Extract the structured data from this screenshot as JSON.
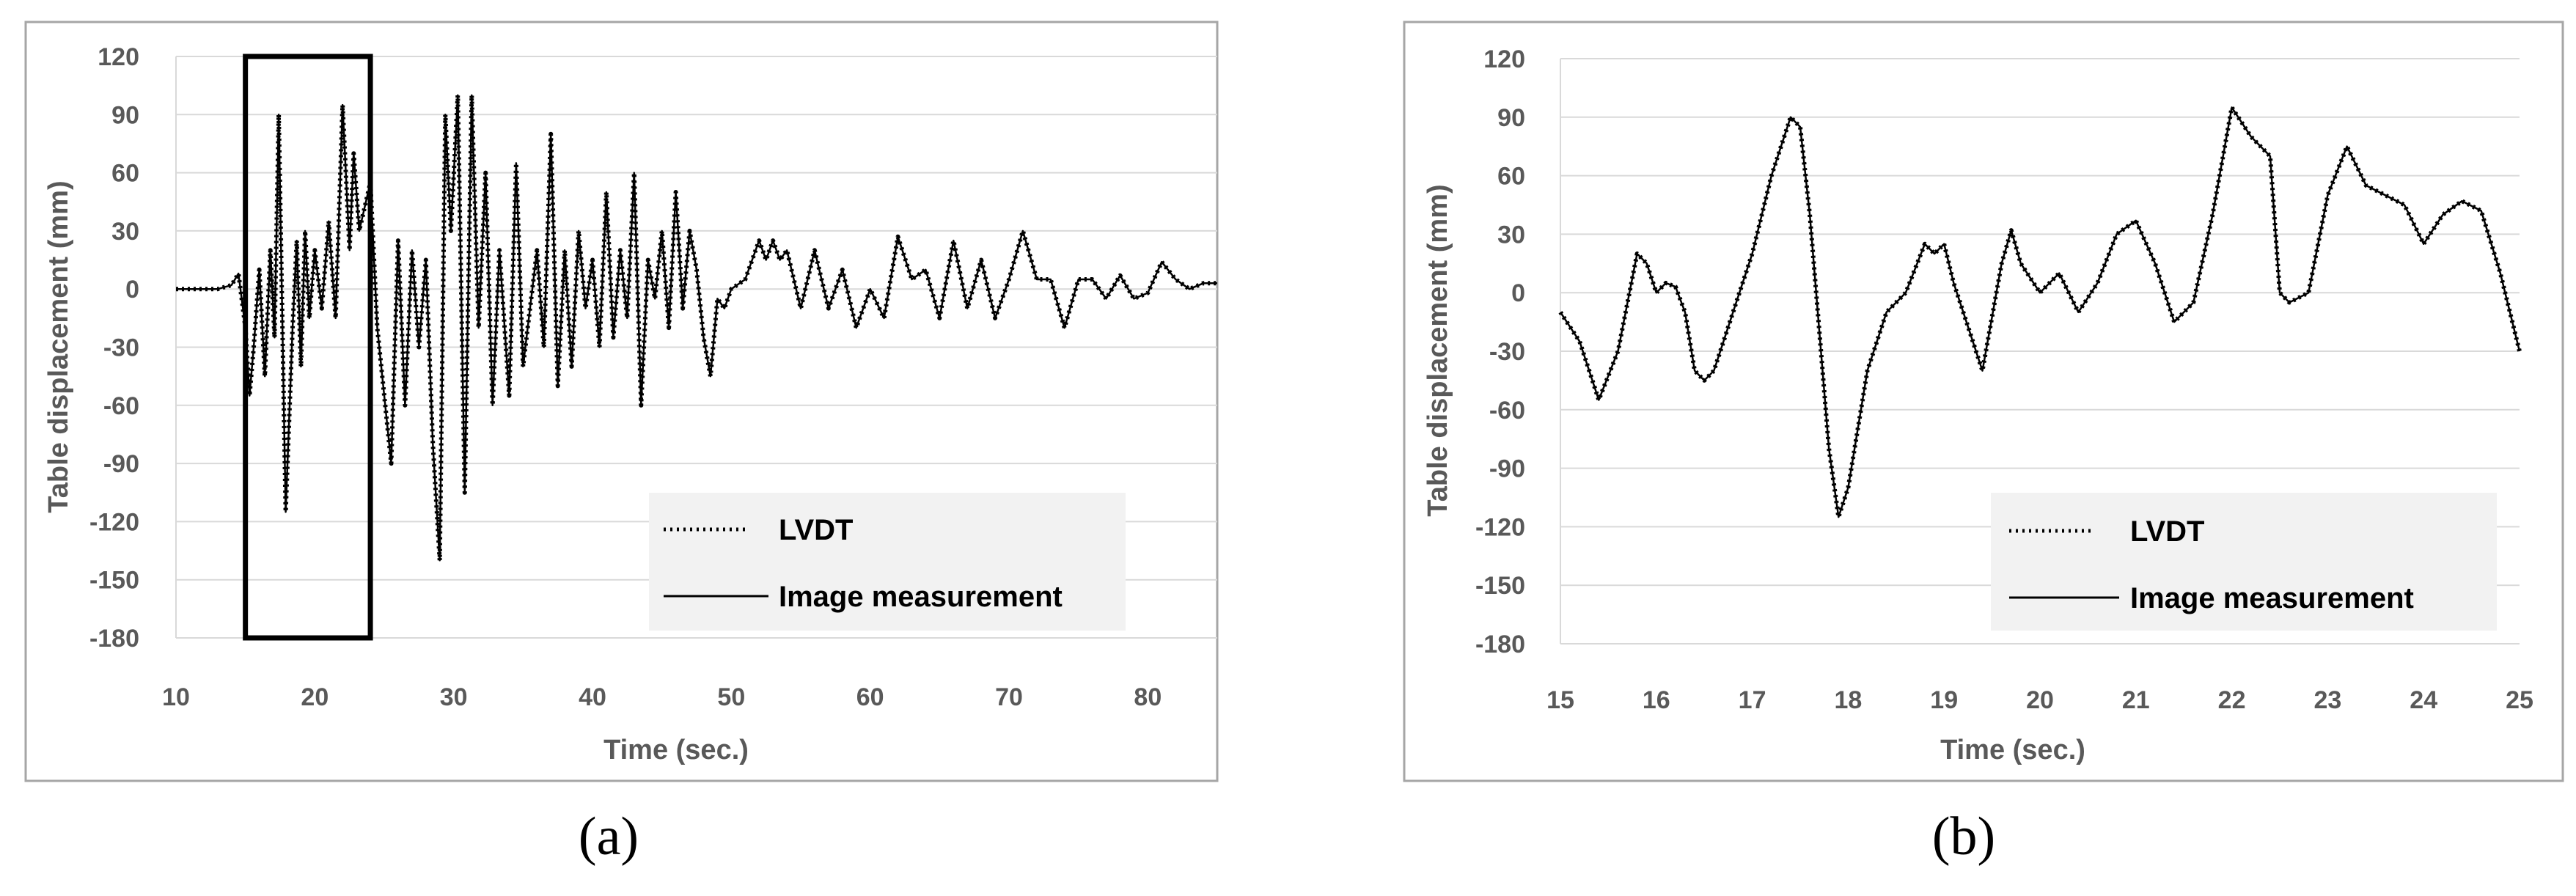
{
  "colors": {
    "frame": "#a6a6a6",
    "grid": "#d9d9d9",
    "text": "#595959",
    "series": "#000000",
    "legend_bg": "#f2f2f2"
  },
  "chart_data": [
    {
      "panel_label": "(a)",
      "type": "line",
      "xlabel": "Time (sec.)",
      "ylabel": "Table displacement (mm)",
      "xlim": [
        10,
        85
      ],
      "ylim": [
        -180,
        120
      ],
      "xticks": [
        10,
        20,
        30,
        40,
        50,
        60,
        70,
        80
      ],
      "yticks": [
        120,
        90,
        60,
        30,
        0,
        -30,
        -60,
        -90,
        -120,
        -150,
        -180
      ],
      "grid": "horizontal",
      "legend_position": "bottom-right",
      "highlight_box": {
        "x_range": [
          15,
          24
        ],
        "y_range": [
          -180,
          120
        ]
      },
      "series": [
        {
          "name": "LVDT",
          "style": "dotted",
          "x": [
            10,
            13,
            14,
            14.5,
            15,
            15.3,
            15.6,
            16,
            16.4,
            16.8,
            17.1,
            17.4,
            17.9,
            18.4,
            18.7,
            19,
            19.3,
            19.6,
            20,
            20.5,
            21,
            21.5,
            22,
            22.5,
            22.8,
            23.2,
            24,
            24.5,
            25,
            25.5,
            26,
            26.5,
            27,
            27.5,
            28,
            28.5,
            29,
            29.4,
            29.8,
            30.3,
            30.8,
            31.3,
            31.8,
            32.3,
            32.8,
            33.3,
            34,
            34.5,
            35,
            35.5,
            36,
            36.5,
            37,
            37.5,
            38,
            38.5,
            39,
            39.5,
            40,
            40.5,
            41,
            41.5,
            42,
            42.5,
            43,
            43.5,
            44,
            44.5,
            45,
            45.5,
            46,
            46.5,
            47,
            47.5,
            48,
            48.5,
            49,
            49.5,
            50,
            51,
            52,
            52.5,
            53,
            53.5,
            54,
            55,
            56,
            57,
            58,
            59,
            60,
            61,
            62,
            63,
            64,
            65,
            66,
            67,
            68,
            69,
            70,
            71,
            72,
            73,
            74,
            75,
            76,
            77,
            78,
            79,
            80,
            81,
            82,
            83,
            84,
            85
          ],
          "y": [
            0,
            0,
            2,
            8,
            -20,
            -55,
            -30,
            10,
            -45,
            20,
            -25,
            90,
            -115,
            -20,
            25,
            -40,
            30,
            -15,
            20,
            -10,
            35,
            -15,
            95,
            20,
            70,
            30,
            55,
            -20,
            -55,
            -90,
            25,
            -60,
            20,
            -30,
            15,
            -80,
            -140,
            90,
            30,
            100,
            -105,
            100,
            -20,
            60,
            -60,
            20,
            -55,
            65,
            -40,
            -10,
            20,
            -30,
            80,
            -50,
            20,
            -40,
            30,
            -10,
            15,
            -30,
            50,
            -25,
            20,
            -15,
            60,
            -60,
            15,
            -5,
            30,
            -20,
            50,
            -10,
            30,
            10,
            -25,
            -45,
            -5,
            -10,
            0,
            5,
            25,
            15,
            25,
            15,
            20,
            -10,
            20,
            -10,
            10,
            -20,
            0,
            -15,
            27,
            5,
            10,
            -15,
            25,
            -10,
            15,
            -15,
            5,
            30,
            5,
            5,
            -20,
            5,
            5,
            -5,
            7,
            -5,
            -2,
            14,
            5,
            0,
            3,
            3
          ],
          "color": "#000000"
        },
        {
          "name": "Image measurement",
          "style": "solid",
          "x": [
            10,
            13,
            14,
            14.5,
            15,
            15.3,
            15.6,
            16,
            16.4,
            16.8,
            17.1,
            17.4,
            17.9,
            18.4,
            18.7,
            19,
            19.3,
            19.6,
            20,
            20.5,
            21,
            21.5,
            22,
            22.5,
            22.8,
            23.2,
            24,
            24.5,
            25,
            25.5,
            26,
            26.5,
            27,
            27.5,
            28,
            28.5,
            29,
            29.4,
            29.8,
            30.3,
            30.8,
            31.3,
            31.8,
            32.3,
            32.8,
            33.3,
            34,
            34.5,
            35,
            35.5,
            36,
            36.5,
            37,
            37.5,
            38,
            38.5,
            39,
            39.5,
            40,
            40.5,
            41,
            41.5,
            42,
            42.5,
            43,
            43.5,
            44,
            44.5,
            45,
            45.5,
            46,
            46.5,
            47,
            47.5,
            48,
            48.5,
            49,
            49.5,
            50,
            51,
            52,
            52.5,
            53,
            53.5,
            54,
            55,
            56,
            57,
            58,
            59,
            60,
            61,
            62,
            63,
            64,
            65,
            66,
            67,
            68,
            69,
            70,
            71,
            72,
            73,
            74,
            75,
            76,
            77,
            78,
            79,
            80,
            81,
            82,
            83,
            84,
            85
          ],
          "y": [
            0,
            0,
            2,
            8,
            -20,
            -55,
            -30,
            10,
            -45,
            20,
            -25,
            90,
            -115,
            -20,
            25,
            -40,
            30,
            -15,
            20,
            -10,
            35,
            -15,
            95,
            20,
            70,
            30,
            55,
            -20,
            -55,
            -90,
            25,
            -60,
            20,
            -30,
            15,
            -80,
            -140,
            90,
            30,
            100,
            -105,
            100,
            -20,
            60,
            -60,
            20,
            -55,
            65,
            -40,
            -10,
            20,
            -30,
            80,
            -50,
            20,
            -40,
            30,
            -10,
            15,
            -30,
            50,
            -25,
            20,
            -15,
            60,
            -60,
            15,
            -5,
            30,
            -20,
            50,
            -10,
            30,
            10,
            -25,
            -45,
            -5,
            -10,
            0,
            5,
            25,
            15,
            25,
            15,
            20,
            -10,
            20,
            -10,
            10,
            -20,
            0,
            -15,
            27,
            5,
            10,
            -15,
            25,
            -10,
            15,
            -15,
            5,
            30,
            5,
            5,
            -20,
            5,
            5,
            -5,
            7,
            -5,
            -2,
            14,
            5,
            0,
            3,
            3
          ],
          "color": "#000000"
        }
      ]
    },
    {
      "panel_label": "(b)",
      "type": "line",
      "xlabel": "Time (sec.)",
      "ylabel": "Table displacement (mm)",
      "xlim": [
        15,
        25
      ],
      "ylim": [
        -180,
        120
      ],
      "xticks": [
        15,
        16,
        17,
        18,
        19,
        20,
        21,
        22,
        23,
        24,
        25
      ],
      "yticks": [
        120,
        90,
        60,
        30,
        0,
        -30,
        -60,
        -90,
        -120,
        -150,
        -180
      ],
      "grid": "horizontal",
      "legend_position": "bottom-right",
      "series": [
        {
          "name": "LVDT",
          "style": "dotted",
          "x": [
            15,
            15.2,
            15.4,
            15.6,
            15.8,
            15.9,
            16,
            16.1,
            16.2,
            16.3,
            16.4,
            16.5,
            16.6,
            16.7,
            16.8,
            17,
            17.2,
            17.4,
            17.5,
            17.6,
            17.8,
            17.9,
            18,
            18.1,
            18.2,
            18.4,
            18.6,
            18.8,
            18.9,
            19,
            19.1,
            19.2,
            19.4,
            19.6,
            19.7,
            19.8,
            20,
            20.2,
            20.4,
            20.6,
            20.8,
            21,
            21.2,
            21.4,
            21.6,
            21.8,
            22,
            22.2,
            22.4,
            22.5,
            22.6,
            22.8,
            23,
            23.2,
            23.4,
            23.6,
            23.8,
            24,
            24.2,
            24.4,
            24.6,
            24.8,
            25
          ],
          "y": [
            -10,
            -25,
            -55,
            -30,
            20,
            15,
            0,
            5,
            3,
            -10,
            -40,
            -45,
            -40,
            -25,
            -10,
            20,
            60,
            90,
            85,
            40,
            -80,
            -115,
            -100,
            -70,
            -40,
            -10,
            0,
            25,
            20,
            25,
            5,
            -10,
            -40,
            15,
            32,
            15,
            0,
            10,
            -10,
            5,
            30,
            37,
            15,
            -15,
            -5,
            40,
            95,
            80,
            70,
            0,
            -5,
            0,
            50,
            75,
            55,
            50,
            45,
            25,
            40,
            47,
            42,
            10,
            -30
          ],
          "color": "#000000"
        },
        {
          "name": "Image measurement",
          "style": "solid",
          "x": [
            15,
            15.2,
            15.4,
            15.6,
            15.8,
            15.9,
            16,
            16.1,
            16.2,
            16.3,
            16.4,
            16.5,
            16.6,
            16.7,
            16.8,
            17,
            17.2,
            17.4,
            17.5,
            17.6,
            17.8,
            17.9,
            18,
            18.1,
            18.2,
            18.4,
            18.6,
            18.8,
            18.9,
            19,
            19.1,
            19.2,
            19.4,
            19.6,
            19.7,
            19.8,
            20,
            20.2,
            20.4,
            20.6,
            20.8,
            21,
            21.2,
            21.4,
            21.6,
            21.8,
            22,
            22.2,
            22.4,
            22.5,
            22.6,
            22.8,
            23,
            23.2,
            23.4,
            23.6,
            23.8,
            24,
            24.2,
            24.4,
            24.6,
            24.8,
            25
          ],
          "y": [
            -10,
            -25,
            -55,
            -30,
            20,
            15,
            0,
            5,
            3,
            -10,
            -40,
            -45,
            -40,
            -25,
            -10,
            20,
            60,
            90,
            85,
            40,
            -80,
            -115,
            -100,
            -70,
            -40,
            -10,
            0,
            25,
            20,
            25,
            5,
            -10,
            -40,
            15,
            32,
            15,
            0,
            10,
            -10,
            5,
            30,
            37,
            15,
            -15,
            -5,
            40,
            95,
            80,
            70,
            0,
            -5,
            0,
            50,
            75,
            55,
            50,
            45,
            25,
            40,
            47,
            42,
            10,
            -30
          ],
          "color": "#000000"
        }
      ]
    }
  ]
}
